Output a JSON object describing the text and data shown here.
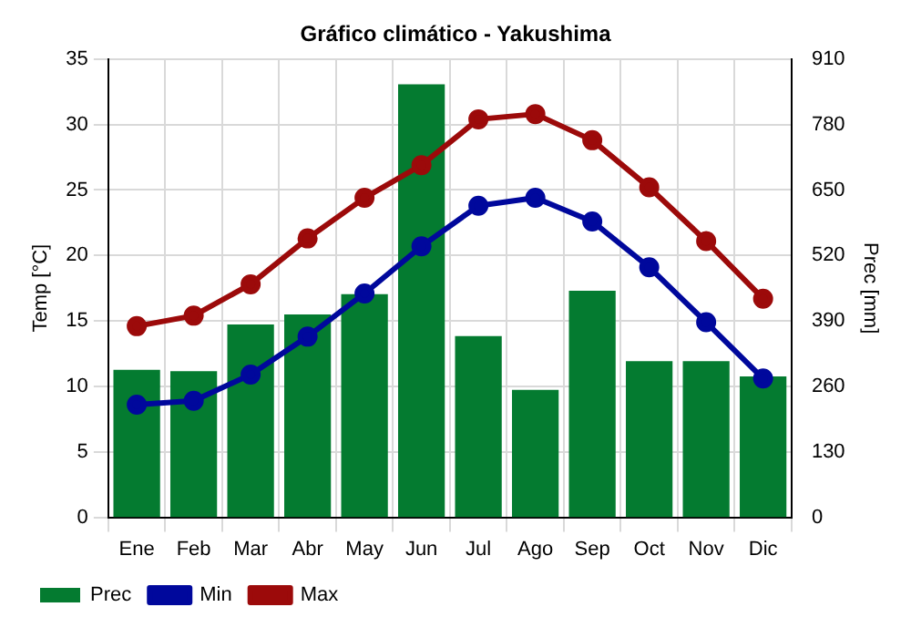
{
  "chart_data": {
    "type": "bar",
    "title": "Gráfico climático - Yakushima",
    "ylabel": "Temp [°C]",
    "y2label": "Prec [mm]",
    "categories": [
      "Ene",
      "Feb",
      "Mar",
      "Abr",
      "May",
      "Jun",
      "Jul",
      "Ago",
      "Sep",
      "Oct",
      "Nov",
      "Dic"
    ],
    "series": [
      {
        "name": "Prec",
        "axis": "y2",
        "color": "#047b30",
        "values": [
          293,
          290,
          383,
          403,
          443,
          860,
          360,
          253,
          450,
          310,
          310,
          280
        ]
      },
      {
        "name": "Min",
        "type": "line",
        "color": "#00089c",
        "values": [
          8.6,
          8.9,
          10.9,
          13.8,
          17.1,
          20.7,
          23.8,
          24.4,
          22.6,
          19.1,
          14.9,
          10.6
        ]
      },
      {
        "name": "Max",
        "type": "line",
        "color": "#9c0a0a",
        "values": [
          14.6,
          15.4,
          17.8,
          21.3,
          24.4,
          26.9,
          30.4,
          30.8,
          28.8,
          25.2,
          21.1,
          16.7
        ]
      }
    ],
    "ylim": [
      0,
      35
    ],
    "yticks": [
      0,
      5,
      10,
      15,
      20,
      25,
      30,
      35
    ],
    "y2lim": [
      0,
      910
    ],
    "y2ticks": [
      0,
      130,
      260,
      390,
      520,
      650,
      780,
      910
    ],
    "grid": true,
    "legend": "bottom",
    "marker": "circle",
    "line_style": "solid"
  }
}
